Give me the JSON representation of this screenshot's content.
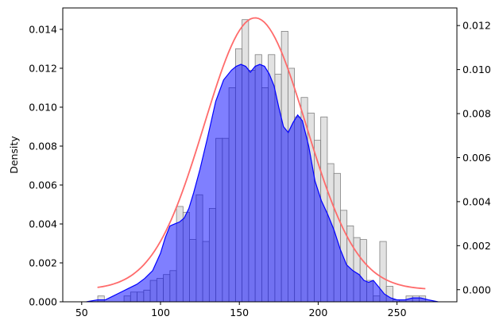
{
  "chart_data": {
    "type": "bar",
    "title": "",
    "xlabel": "",
    "ylabel": "Density",
    "grid": false,
    "legend": "none",
    "x_ticks": [
      50,
      100,
      150,
      200,
      250
    ],
    "xlim": [
      38,
      288
    ],
    "ylim": [
      0,
      0.0151
    ],
    "y_ticks": [
      0.0,
      0.002,
      0.004,
      0.006,
      0.008,
      0.01,
      0.012,
      0.014
    ],
    "y_tick_labels": [
      "0.000",
      "0.002",
      "0.004",
      "0.006",
      "0.008",
      "0.010",
      "0.012",
      "0.014"
    ],
    "y2lim": [
      -0.00055,
      0.0128
    ],
    "y2_ticks": [
      0.0,
      0.002,
      0.004,
      0.006,
      0.008,
      0.01,
      0.012
    ],
    "y2_tick_labels": [
      "0.000",
      "0.002",
      "0.004",
      "0.006",
      "0.008",
      "0.010",
      "0.012"
    ],
    "histogram": {
      "color": "#d3d3d3",
      "edge_color": "#808080",
      "bin_start": 60.2,
      "bin_width": 4.16,
      "values": [
        0.0003,
        0.0,
        0.0,
        0.0,
        0.0003,
        0.0005,
        0.0005,
        0.0006,
        0.0011,
        0.0012,
        0.0014,
        0.0016,
        0.0049,
        0.0046,
        0.0032,
        0.0055,
        0.0031,
        0.0048,
        0.0084,
        0.0084,
        0.011,
        0.013,
        0.0145,
        0.0119,
        0.0127,
        0.011,
        0.0127,
        0.0117,
        0.0139,
        0.012,
        0.0095,
        0.0105,
        0.0097,
        0.0083,
        0.0095,
        0.0071,
        0.0066,
        0.0047,
        0.0039,
        0.0033,
        0.0032,
        0.0011,
        0.0003,
        0.0031,
        0.0008,
        0.0001,
        0.0001,
        0.0003,
        0.0003,
        0.0003
      ]
    },
    "kde": {
      "color": "#0000ff",
      "fill": "#0000ff",
      "fill_opacity": 0.5,
      "x": [
        53,
        60,
        65,
        70,
        75,
        80,
        85,
        90,
        95,
        100,
        103,
        106,
        109,
        112,
        115,
        118,
        121,
        125,
        130,
        135,
        140,
        145,
        148,
        151,
        154,
        157,
        160,
        163,
        166,
        169,
        172,
        175,
        178,
        181,
        184,
        187,
        190,
        194,
        198,
        202,
        206,
        210,
        214,
        218,
        222,
        226,
        229,
        232,
        235,
        238,
        242,
        246,
        250,
        255,
        260,
        265,
        270,
        276
      ],
      "y": [
        0.0,
        0.0001,
        0.0001,
        0.0003,
        0.0005,
        0.0007,
        0.0009,
        0.0012,
        0.0016,
        0.0025,
        0.0033,
        0.0039,
        0.004,
        0.0041,
        0.0043,
        0.0048,
        0.0056,
        0.0068,
        0.0085,
        0.0103,
        0.0114,
        0.0119,
        0.0121,
        0.0122,
        0.0121,
        0.0118,
        0.0121,
        0.0122,
        0.0121,
        0.0117,
        0.0111,
        0.01,
        0.009,
        0.0087,
        0.0092,
        0.0096,
        0.0093,
        0.008,
        0.0062,
        0.0052,
        0.0045,
        0.0037,
        0.0027,
        0.0019,
        0.0016,
        0.0014,
        0.0011,
        0.001,
        0.0011,
        0.0008,
        0.0004,
        0.0002,
        0.0001,
        0.0001,
        0.0002,
        0.0002,
        0.0001,
        0.0
      ]
    },
    "normal_curve": {
      "color": "#ff6b6b",
      "axis": "right",
      "x_range": [
        60,
        268
      ],
      "mean": 160,
      "sd": 32.3,
      "peak": 0.01235
    }
  }
}
